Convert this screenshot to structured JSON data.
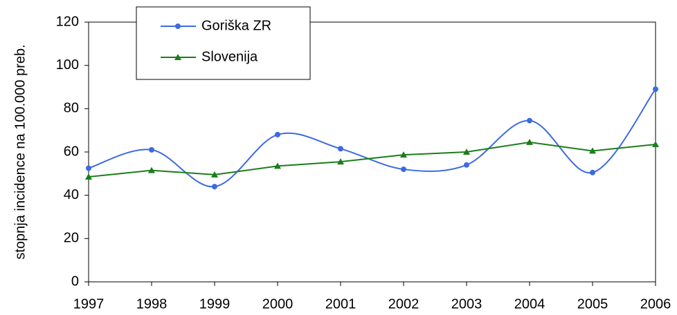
{
  "chart_data": {
    "type": "line",
    "y_label": "stopnja incidence na 100.000 preb.",
    "x": [
      1997,
      1998,
      1999,
      2000,
      2001,
      2002,
      2003,
      2004,
      2005,
      2006
    ],
    "xlim": [
      1997,
      2006
    ],
    "xticks": [
      1997,
      1998,
      1999,
      2000,
      2001,
      2002,
      2003,
      2004,
      2005,
      2006
    ],
    "ylim": [
      0,
      120
    ],
    "yticks": [
      0,
      20,
      40,
      60,
      80,
      100,
      120
    ],
    "legend": "top-left",
    "series": [
      {
        "name": "Goriška ZR",
        "color": "#3b6be0",
        "marker": "circle",
        "smooth": true,
        "values": [
          52.5,
          61,
          44,
          68,
          61.5,
          52,
          54,
          74.5,
          50.5,
          89
        ]
      },
      {
        "name": "Slovenija",
        "color": "#1a7d1a",
        "marker": "triangle",
        "smooth": false,
        "values": [
          48.5,
          51.5,
          49.5,
          53.5,
          55.5,
          58.7,
          60,
          64.5,
          60.5,
          63.5
        ]
      }
    ]
  }
}
